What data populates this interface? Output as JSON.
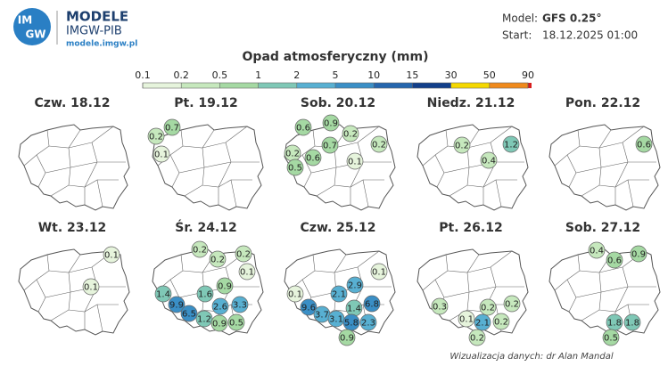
{
  "header": {
    "logo_top": "IM",
    "logo_bottom": "GW",
    "brand": "MODELE",
    "org": "IMGW-PIB",
    "url": "modele.imgw.pl",
    "model_label": "Model:",
    "model": "GFS 0.25°",
    "start_label": "Start:",
    "start": "18.12.2025 01:00"
  },
  "legend": {
    "title": "Opad atmosferyczny (mm)",
    "ticks": [
      0.1,
      0.2,
      0.5,
      1,
      2,
      5,
      10,
      15,
      30,
      50,
      90
    ],
    "colors": [
      "#e6f4dc",
      "#c6e8bd",
      "#a5d9a3",
      "#7fc8b6",
      "#58b0d2",
      "#3a8fc6",
      "#2566ad",
      "#123f8a",
      "#f5d800",
      "#f08a1c"
    ],
    "over_color": "#d81e1e"
  },
  "panels": [
    {
      "date": "Czw. 18.12",
      "values": []
    },
    {
      "date": "Pt. 19.12",
      "values": [
        0.7,
        0.2,
        0.1
      ]
    },
    {
      "date": "Sob. 20.12",
      "values": [
        0.9,
        0.6,
        0.2,
        0.2,
        0.7,
        0.2,
        0.6,
        0.1,
        0.5
      ]
    },
    {
      "date": "Niedz. 21.12",
      "values": [
        0.2,
        1.2,
        0.4
      ]
    },
    {
      "date": "Pon. 22.12",
      "values": [
        0.6
      ]
    },
    {
      "date": "Wt. 23.12",
      "values": [
        0.1,
        0.1
      ]
    },
    {
      "date": "Śr. 24.12",
      "values": [
        0.2,
        0.2,
        0.2,
        0.1,
        0.9,
        1.4,
        1.6,
        9.9,
        2.6,
        3.3,
        6.5,
        1.2,
        0.9,
        0.5
      ]
    },
    {
      "date": "Czw. 25.12",
      "values": [
        0.1,
        2.9,
        2.1,
        0.1,
        6.8,
        9.6,
        1.4,
        3.7,
        3.1,
        5.8,
        2.3,
        0.9
      ]
    },
    {
      "date": "Pt. 26.12",
      "values": [
        0.3,
        0.2,
        0.2,
        0.1,
        2.1,
        0.2,
        0.2
      ]
    },
    {
      "date": "Sob. 27.12",
      "values": [
        0.4,
        0.6,
        0.9,
        1.8,
        1.8,
        0.5
      ]
    }
  ],
  "footer": "Wizualizacja danych: dr Alan Mandal"
}
